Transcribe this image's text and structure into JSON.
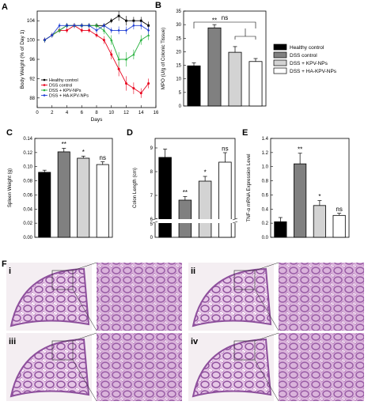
{
  "chart_data": [
    {
      "panel": "A",
      "type": "line",
      "xlabel": "Days",
      "ylabel": "Body Weight (% of Day 1)",
      "xlim": [
        0,
        16
      ],
      "ylim": [
        86,
        106
      ],
      "x_ticks": [
        "0",
        "2",
        "4",
        "6",
        "8",
        "10",
        "12",
        "14",
        "16"
      ],
      "y_ticks": [
        "88",
        "92",
        "96",
        "100",
        "104"
      ],
      "legend_position": "bottom-left",
      "series": [
        {
          "name": "Healthy control",
          "color": "#000000",
          "marker": "square",
          "x": [
            1,
            2,
            3,
            4,
            5,
            6,
            7,
            8,
            9,
            10,
            11,
            12,
            13,
            14,
            15
          ],
          "y": [
            100,
            101,
            102,
            103,
            103,
            103,
            103,
            103,
            103,
            104,
            105,
            104,
            104,
            104,
            103
          ],
          "err": [
            0.5,
            0.5,
            0.5,
            0.5,
            0.5,
            0.5,
            0.5,
            0.5,
            0.5,
            0.5,
            1,
            1,
            0.8,
            0.8,
            0.8
          ]
        },
        {
          "name": "DSS control",
          "color": "#e8001c",
          "marker": "circle",
          "x": [
            1,
            2,
            3,
            4,
            5,
            6,
            7,
            8,
            9,
            10,
            11,
            12,
            13,
            14,
            15
          ],
          "y": [
            100,
            101,
            102,
            102,
            103,
            102,
            102,
            101,
            100,
            97,
            94,
            91,
            90,
            89,
            91
          ],
          "err": [
            0.5,
            0.5,
            0.5,
            0.5,
            0.5,
            0.5,
            0.5,
            0.5,
            0.8,
            1,
            1.5,
            1.5,
            1.2,
            1,
            1
          ]
        },
        {
          "name": "DSS + KPV-NPs",
          "color": "#22b03a",
          "marker": "triangle",
          "x": [
            1,
            2,
            3,
            4,
            5,
            6,
            7,
            8,
            9,
            10,
            11,
            12,
            13,
            14,
            15
          ],
          "y": [
            100,
            101,
            102,
            103,
            103,
            103,
            103,
            103,
            102,
            100,
            96,
            96,
            97,
            100,
            101
          ],
          "err": [
            0.5,
            0.5,
            0.5,
            0.5,
            0.5,
            0.5,
            0.5,
            0.5,
            0.8,
            1,
            1.5,
            1.5,
            1,
            1,
            1
          ]
        },
        {
          "name": "DSS + HA-KPV-NPs",
          "color": "#1f3fd6",
          "marker": "diamond",
          "x": [
            1,
            2,
            3,
            4,
            5,
            6,
            7,
            8,
            9,
            10,
            11,
            12,
            13,
            14,
            15
          ],
          "y": [
            100,
            101,
            103,
            103,
            103,
            103,
            103,
            102,
            103,
            102,
            102,
            102,
            103,
            103,
            102
          ],
          "err": [
            0.5,
            0.5,
            0.5,
            0.5,
            0.5,
            0.5,
            0.5,
            0.5,
            0.5,
            0.6,
            0.8,
            0.8,
            0.8,
            0.8,
            0.8
          ]
        }
      ]
    },
    {
      "panel": "B",
      "type": "bar",
      "ylabel": "MPO (U/g of Colonic Tissue)",
      "ylim": [
        0,
        35
      ],
      "y_ticks": [
        "0",
        "5",
        "10",
        "15",
        "20",
        "25",
        "30",
        "35"
      ],
      "categories": [
        "Healthy control",
        "DSS control",
        "DSS + KPV-NPs",
        "DSS + HA-KPV-NPs"
      ],
      "values": [
        14.8,
        28.8,
        19.8,
        16.4
      ],
      "errors": [
        1.1,
        1.2,
        2.1,
        1.1
      ],
      "annotations": [
        "",
        "**",
        "",
        ""
      ],
      "bracket_label": "ns"
    },
    {
      "panel": "C",
      "type": "bar",
      "ylabel": "Spleen Weight (g)",
      "ylim": [
        0,
        0.14
      ],
      "y_ticks": [
        "0.00",
        "0.02",
        "0.04",
        "0.06",
        "0.08",
        "0.10",
        "0.12",
        "0.14"
      ],
      "categories": [
        "Healthy control",
        "DSS control",
        "DSS + KPV-NPs",
        "DSS + HA-KPV-NPs"
      ],
      "values": [
        0.092,
        0.121,
        0.112,
        0.103
      ],
      "errors": [
        0.003,
        0.005,
        0.003,
        0.004
      ],
      "annotations": [
        "",
        "**",
        "*",
        "ns"
      ]
    },
    {
      "panel": "D",
      "type": "bar",
      "ylabel": "Colon Length (cm)",
      "y_ticks_upper": [
        "6",
        "7",
        "8",
        "9"
      ],
      "y_ticks_lower": [
        "0",
        "5"
      ],
      "axis_break": true,
      "categories": [
        "Healthy control",
        "DSS control",
        "DSS + KPV-NPs",
        "DSS + HA-KPV-NPs"
      ],
      "values": [
        8.6,
        6.8,
        7.6,
        8.4
      ],
      "errors": [
        0.35,
        0.15,
        0.2,
        0.4
      ],
      "annotations": [
        "",
        "**",
        "*",
        "ns"
      ]
    },
    {
      "panel": "E",
      "type": "bar",
      "ylabel": "TNF-α mRNA Expression Level",
      "ylim": [
        0,
        1.4
      ],
      "y_ticks": [
        "0.0",
        "0.2",
        "0.4",
        "0.6",
        "0.8",
        "1.0",
        "1.2",
        "1.4"
      ],
      "categories": [
        "Healthy control",
        "DSS control",
        "DSS + KPV-NPs",
        "DSS + HA-KPV-NPs"
      ],
      "values": [
        0.22,
        1.04,
        0.45,
        0.31
      ],
      "errors": [
        0.06,
        0.15,
        0.07,
        0.03
      ],
      "annotations": [
        "",
        "**",
        "*",
        "ns"
      ]
    }
  ],
  "legend": {
    "items": [
      {
        "label": "Healthy control",
        "color": "#000000"
      },
      {
        "label": "DSS control",
        "color": "#808080"
      },
      {
        "label": "DSS + KPV-NPs",
        "color": "#d3d3d3"
      },
      {
        "label": "DSS + HA-KPV-NPs",
        "color": "#ffffff"
      }
    ]
  },
  "panel_letters": [
    "A",
    "B",
    "C",
    "D",
    "E",
    "F"
  ],
  "histology": {
    "panels": [
      "i",
      "ii",
      "iii",
      "iv"
    ],
    "stain_colors": {
      "tissue": "#b87bbd",
      "deep": "#8d4f9c",
      "light": "#e6c6e6",
      "background": "#f4eef2"
    }
  }
}
